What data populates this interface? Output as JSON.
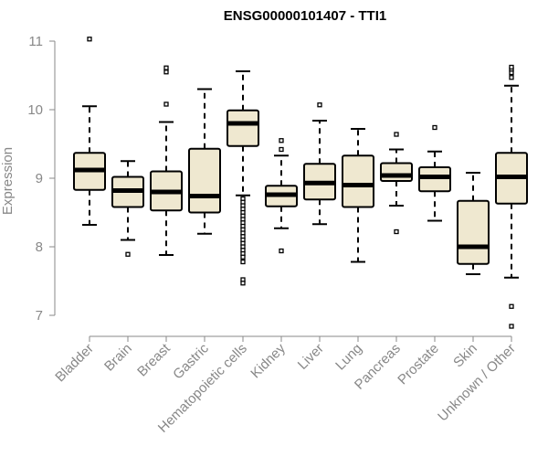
{
  "chart_data": {
    "type": "box",
    "title": "ENSG00000101407 - TTI1",
    "ylabel": "Expression",
    "xlabel": "",
    "ylim": [
      6.7,
      11.2
    ],
    "yticks": [
      7,
      8,
      9,
      10,
      11
    ],
    "grid": false,
    "legend": "none",
    "box_fill": "#efe8d0",
    "stroke": "#000000",
    "categories": [
      "Bladder",
      "Brain",
      "Breast",
      "Gastric",
      "Hematopoietic cells",
      "Kidney",
      "Liver",
      "Lung",
      "Pancreas",
      "Prostate",
      "Skin",
      "Unknown / Other"
    ],
    "boxes": [
      {
        "q1": 8.83,
        "median": 9.12,
        "q3": 9.37,
        "whisker_low": 8.32,
        "whisker_high": 10.05,
        "outliers": [
          11.03
        ]
      },
      {
        "q1": 8.58,
        "median": 8.82,
        "q3": 9.02,
        "whisker_low": 8.1,
        "whisker_high": 9.25,
        "outliers": [
          7.89
        ]
      },
      {
        "q1": 8.53,
        "median": 8.8,
        "q3": 9.1,
        "whisker_low": 7.88,
        "whisker_high": 9.82,
        "outliers": [
          10.08,
          10.55,
          10.61
        ]
      },
      {
        "q1": 8.5,
        "median": 8.74,
        "q3": 9.43,
        "whisker_low": 8.19,
        "whisker_high": 10.3,
        "outliers": []
      },
      {
        "q1": 9.47,
        "median": 9.8,
        "q3": 9.99,
        "whisker_low": 8.75,
        "whisker_high": 10.56,
        "outliers": [
          8.7,
          8.65,
          8.6,
          8.55,
          8.5,
          8.45,
          8.4,
          8.35,
          8.3,
          8.25,
          8.2,
          8.15,
          8.1,
          8.05,
          8.0,
          7.95,
          7.9,
          7.85,
          7.78,
          7.52,
          7.47
        ]
      },
      {
        "q1": 8.59,
        "median": 8.76,
        "q3": 8.89,
        "whisker_low": 8.27,
        "whisker_high": 9.33,
        "outliers": [
          9.42,
          9.55,
          7.94
        ]
      },
      {
        "q1": 8.69,
        "median": 8.93,
        "q3": 9.21,
        "whisker_low": 8.33,
        "whisker_high": 9.84,
        "outliers": [
          10.07
        ]
      },
      {
        "q1": 8.58,
        "median": 8.9,
        "q3": 9.33,
        "whisker_low": 7.78,
        "whisker_high": 9.72,
        "outliers": []
      },
      {
        "q1": 8.96,
        "median": 9.04,
        "q3": 9.22,
        "whisker_low": 8.6,
        "whisker_high": 9.42,
        "outliers": [
          9.64,
          8.22
        ]
      },
      {
        "q1": 8.81,
        "median": 9.02,
        "q3": 9.16,
        "whisker_low": 8.38,
        "whisker_high": 9.39,
        "outliers": [
          9.74
        ]
      },
      {
        "q1": 7.75,
        "median": 8.0,
        "q3": 8.67,
        "whisker_low": 7.6,
        "whisker_high": 9.08,
        "outliers": []
      },
      {
        "q1": 8.63,
        "median": 9.02,
        "q3": 9.37,
        "whisker_low": 7.55,
        "whisker_high": 10.35,
        "outliers": [
          10.47,
          10.54,
          10.59,
          10.62,
          7.13,
          6.84
        ]
      }
    ]
  }
}
